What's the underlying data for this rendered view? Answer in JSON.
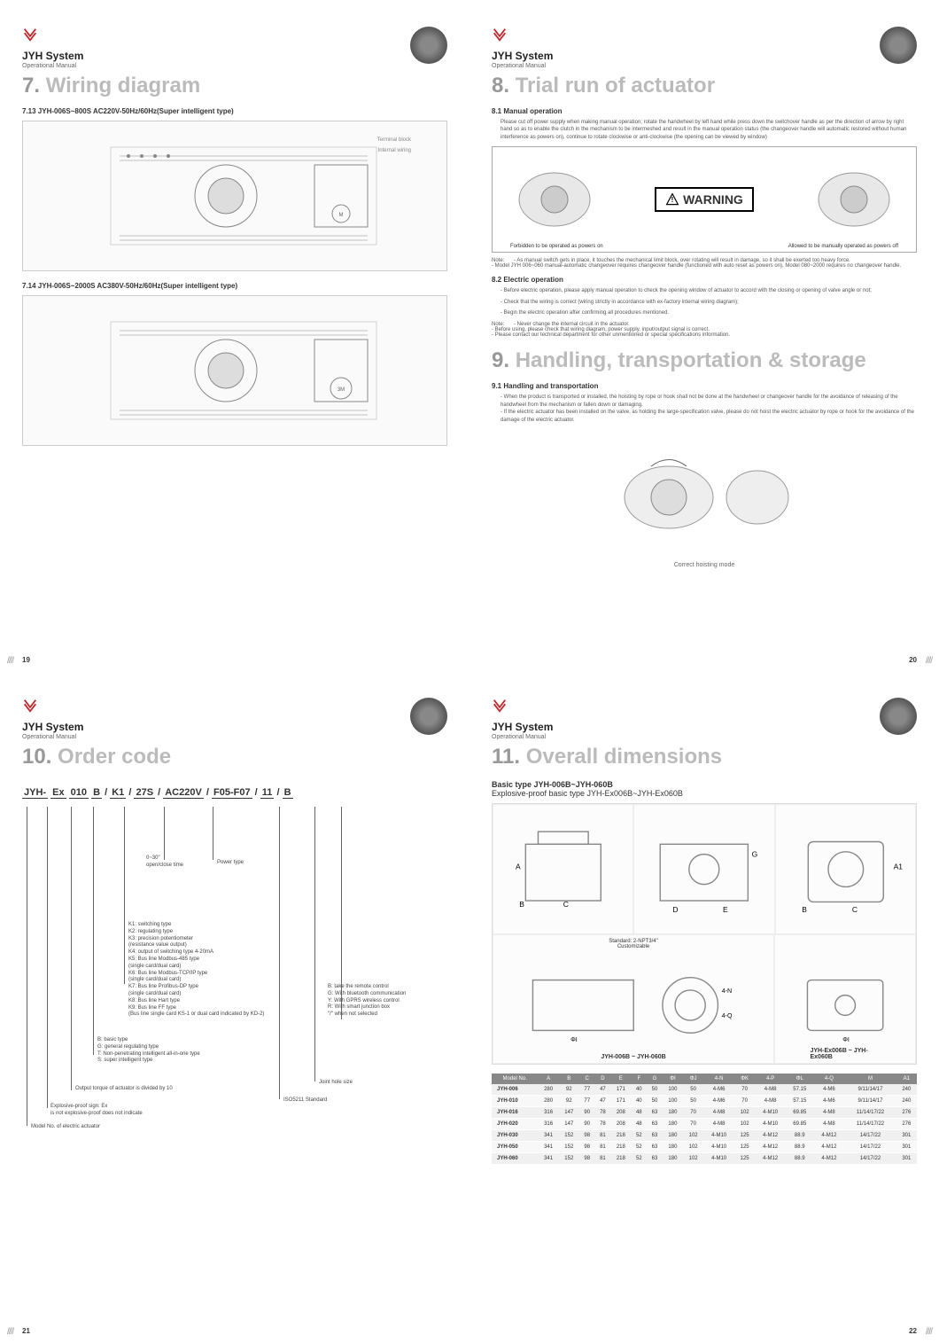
{
  "brand": "JYH System",
  "subbrand": "Operational Manual",
  "pages": {
    "p19": {
      "title_num": "7.",
      "title_text": "Wiring diagram",
      "sub1": "7.13  JYH-006S~800S  AC220V-50Hz/60Hz(Super intelligent type)",
      "sub2": "7.14  JYH-006S~2000S  AC380V-50Hz/60Hz(Super intelligent type)",
      "diag_terminal": "Terminal block",
      "diag_internal": "Internal wiring",
      "page_num": "19"
    },
    "p20": {
      "title_num": "8.",
      "title_text": "Trial run of actuator",
      "sub1": "8.1  Manual operation",
      "body1": "Please cut off power supply when making manual operation; rotate the handwheel by left hand while press down the switchover handle as per the direction of arrow by right hand so as to enable the clutch in the mechanism to be intermeshed and result in the manual operation status (the changeover handle will automatic restored without human interference as powers on), continue to rotate clockwise or anti-clockwise (the opening can be viewed by window)",
      "warning": "WARNING",
      "warn_left": "Forbidden to be operated as powers on",
      "warn_right": "Allowed to be manually operated as powers off",
      "note1": "- As manual switch gets in place, it touches the mechanical limit block, over rotating will result in damage, so it shall be exerted too heavy force.\n- Model JYH 006~060 manual-automatic changeover requires changeover handle (functioned with auto reset as powers on), Model 080~2000 requires no changeover handle.",
      "sub2": "8.2  Electric operation",
      "body2a": "- Before electric operation, please apply manual operation to check the opening window of actuator to accord with the closing or opening of valve angle or not;",
      "body2b": "- Check that the wiring is correct (wiring strictly in accordance with ex-factory internal wiring diagram);",
      "body2c": "- Begin the electric operation after confirming all procedures mentioned.",
      "note2": "- Never change the internal circuit in the actuator.\n- Before using, please check that wiring diagram, power supply, input/output signal is correct.\n- Please contact our technical department for other unmentioned or special specifications information.",
      "title2_num": "9.",
      "title2_text": "Handling, transportation & storage",
      "sub3": "9.1  Handling and transportation",
      "body3": "- When the product is transported or installed, the hoisting by rope or hook shall not be done at the handwheel or changeover handle for the avoidance of releasing of the handwheel from the mechanism or fallen down or damaging.\n- If the electric actuator has been installed on the valve, as holding the large-specification valve, please do not hoist the electric actuator by rope or hook for the avoidance of the damage of the electric actuator.",
      "caption3": "Correct hoisting mode",
      "page_num": "20"
    },
    "p21": {
      "title_num": "10.",
      "title_text": "Order code",
      "order_parts": [
        "JYH-",
        "Ex",
        "010",
        "B",
        "/",
        "K1",
        "/",
        "27S",
        "/",
        "AC220V",
        "/",
        "F05-F07",
        "/",
        "11",
        "/",
        "B"
      ],
      "desc_time": "0~30\"\nopen/close time",
      "desc_power": "Power type",
      "desc_k": "K1: switching type\nK2: regulating type\nK3: precision potentiometer\n(resistance value output)\nK4: output of switching type 4-20mA\nK5: Bus line Modbus-485 type\n(single card/dual card)\nK6: Bus line Modbus-TCP/IP type\n(single card/dual card)\nK7: Bus line Profibus-DP type\n(single card/dual card)\nK8: Bus line Hart type\nK9: Bus line FF type\n(Bus line single card KS-1 or dual card indicated by KD-2)",
      "desc_b": "B: basic type\nG: general regulating type\nT: Non-penetrating intelligent all-in-one type\nS: super intelligent type",
      "desc_torque": "Output torque of actuator is divided by 10",
      "desc_ex": "Explosive-proof sign: Ex\nis not explosive-proof does not indicate",
      "desc_model": "Model No. of electric actuator",
      "desc_remote": "B: take the remote control\nG: With bluetooth communication\nY: With GPRS wireless control\nR: With smart junction box\n\"/\" when not selected",
      "desc_joint": "Joint hole size",
      "desc_iso": "ISO5211 Standard",
      "page_num": "21"
    },
    "p22": {
      "title_num": "11.",
      "title_text": "Overall dimensions",
      "header1": "Basic type JYH-006B~JYH-060B",
      "header2": "Explosive-proof basic type JYH-Ex006B~JYH-Ex060B",
      "std_note": "Standard: 2-NPT3/4\"\nCustomizable",
      "cap_left": "JYH-006B ~ JYH-060B",
      "cap_right": "JYH-Ex006B ~ JYH-Ex060B",
      "table": {
        "columns": [
          "Model No.",
          "A",
          "B",
          "C",
          "D",
          "E",
          "F",
          "G",
          "ΦI",
          "ΦJ",
          "4-N",
          "ΦK",
          "4-P",
          "ΦL",
          "4-Q",
          "M",
          "A1"
        ],
        "rows": [
          [
            "JYH-006",
            "280",
            "92",
            "77",
            "47",
            "171",
            "40",
            "50",
            "100",
            "50",
            "4-M6",
            "70",
            "4-M8",
            "57.15",
            "4-M6",
            "9/11/14/17",
            "240"
          ],
          [
            "JYH-010",
            "280",
            "92",
            "77",
            "47",
            "171",
            "40",
            "50",
            "100",
            "50",
            "4-M6",
            "70",
            "4-M8",
            "57.15",
            "4-M6",
            "9/11/14/17",
            "240"
          ],
          [
            "JYH-016",
            "316",
            "147",
            "90",
            "78",
            "208",
            "48",
            "63",
            "180",
            "70",
            "4-M8",
            "102",
            "4-M10",
            "69.85",
            "4-M8",
            "11/14/17/22",
            "276"
          ],
          [
            "JYH-020",
            "316",
            "147",
            "90",
            "78",
            "208",
            "48",
            "63",
            "180",
            "70",
            "4-M8",
            "102",
            "4-M10",
            "69.85",
            "4-M8",
            "11/14/17/22",
            "276"
          ],
          [
            "JYH-030",
            "341",
            "152",
            "98",
            "81",
            "218",
            "52",
            "63",
            "180",
            "102",
            "4-M10",
            "125",
            "4-M12",
            "88.9",
            "4-M12",
            "14/17/22",
            "301"
          ],
          [
            "JYH-050",
            "341",
            "152",
            "98",
            "81",
            "218",
            "52",
            "63",
            "180",
            "102",
            "4-M10",
            "125",
            "4-M12",
            "88.9",
            "4-M12",
            "14/17/22",
            "301"
          ],
          [
            "JYH-060",
            "341",
            "152",
            "98",
            "81",
            "218",
            "52",
            "63",
            "180",
            "102",
            "4-M10",
            "125",
            "4-M12",
            "88.9",
            "4-M12",
            "14/17/22",
            "301"
          ]
        ]
      },
      "page_num": "22"
    }
  },
  "colors": {
    "arrow": "#c1272d",
    "title_gray": "#b8b8b8",
    "table_header_bg": "#888888"
  }
}
